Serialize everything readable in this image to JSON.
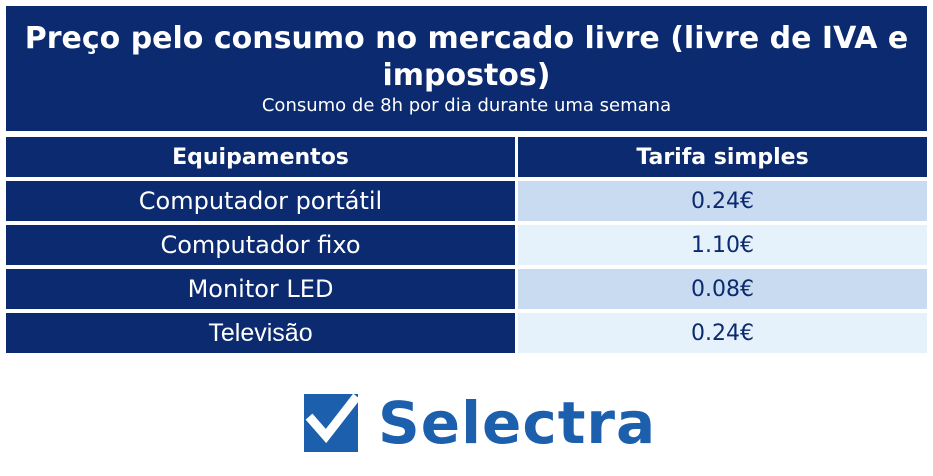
{
  "header": {
    "title": "Preço pelo consumo no mercado livre (livre de IVA e impostos)",
    "subtitle": "Consumo de 8h por dia durante uma semana"
  },
  "table": {
    "columns": [
      "Equipamentos",
      "Tarifa simples"
    ],
    "rows": [
      {
        "equipment": "Computador portátil",
        "price": "0.24€"
      },
      {
        "equipment": "Computador fixo",
        "price": "1.10€"
      },
      {
        "equipment": "Monitor LED",
        "price": "0.08€"
      },
      {
        "equipment": "Televisão",
        "price": "0.24€"
      }
    ]
  },
  "logo": {
    "text": "Selectra",
    "icon": "checkmark-shield-icon",
    "color": "#1b5fad"
  },
  "colors": {
    "header_bg": "#0b2a6f",
    "row_light": "#c9dbf0",
    "row_lighter": "#e6f2fb"
  }
}
